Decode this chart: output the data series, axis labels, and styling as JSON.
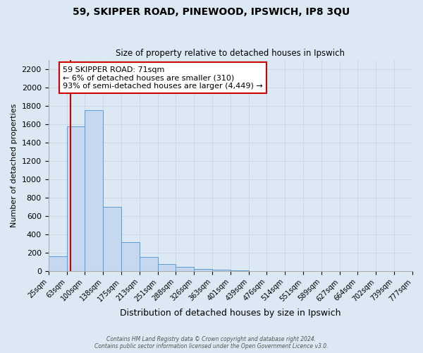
{
  "title": "59, SKIPPER ROAD, PINEWOOD, IPSWICH, IP8 3QU",
  "subtitle": "Size of property relative to detached houses in Ipswich",
  "xlabel": "Distribution of detached houses by size in Ipswich",
  "ylabel": "Number of detached properties",
  "bin_labels": [
    "25sqm",
    "63sqm",
    "100sqm",
    "138sqm",
    "175sqm",
    "213sqm",
    "251sqm",
    "288sqm",
    "326sqm",
    "363sqm",
    "401sqm",
    "439sqm",
    "476sqm",
    "514sqm",
    "551sqm",
    "589sqm",
    "627sqm",
    "664sqm",
    "702sqm",
    "739sqm",
    "777sqm"
  ],
  "bin_edges": [
    25,
    63,
    100,
    138,
    175,
    213,
    251,
    288,
    326,
    363,
    401,
    439,
    476,
    514,
    551,
    589,
    627,
    664,
    702,
    739,
    777
  ],
  "bar_heights": [
    160,
    1575,
    1750,
    700,
    315,
    150,
    75,
    45,
    25,
    15,
    10,
    0,
    0,
    0,
    0,
    0,
    0,
    0,
    0,
    0
  ],
  "bar_color": "#c5d8f0",
  "bar_edge_color": "#5b9bd5",
  "red_line_x": 71,
  "red_line_color": "#cc0000",
  "annotation_line1": "59 SKIPPER ROAD: 71sqm",
  "annotation_line2": "← 6% of detached houses are smaller (310)",
  "annotation_line3": "93% of semi-detached houses are larger (4,449) →",
  "annotation_box_color": "#ffffff",
  "annotation_box_edge": "#cc0000",
  "ylim": [
    0,
    2300
  ],
  "yticks": [
    0,
    200,
    400,
    600,
    800,
    1000,
    1200,
    1400,
    1600,
    1800,
    2000,
    2200
  ],
  "grid_color": "#c8d8ea",
  "background_color": "#dce9f5",
  "footer_line1": "Contains HM Land Registry data © Crown copyright and database right 2024.",
  "footer_line2": "Contains public sector information licensed under the Open Government Licence v3.0."
}
